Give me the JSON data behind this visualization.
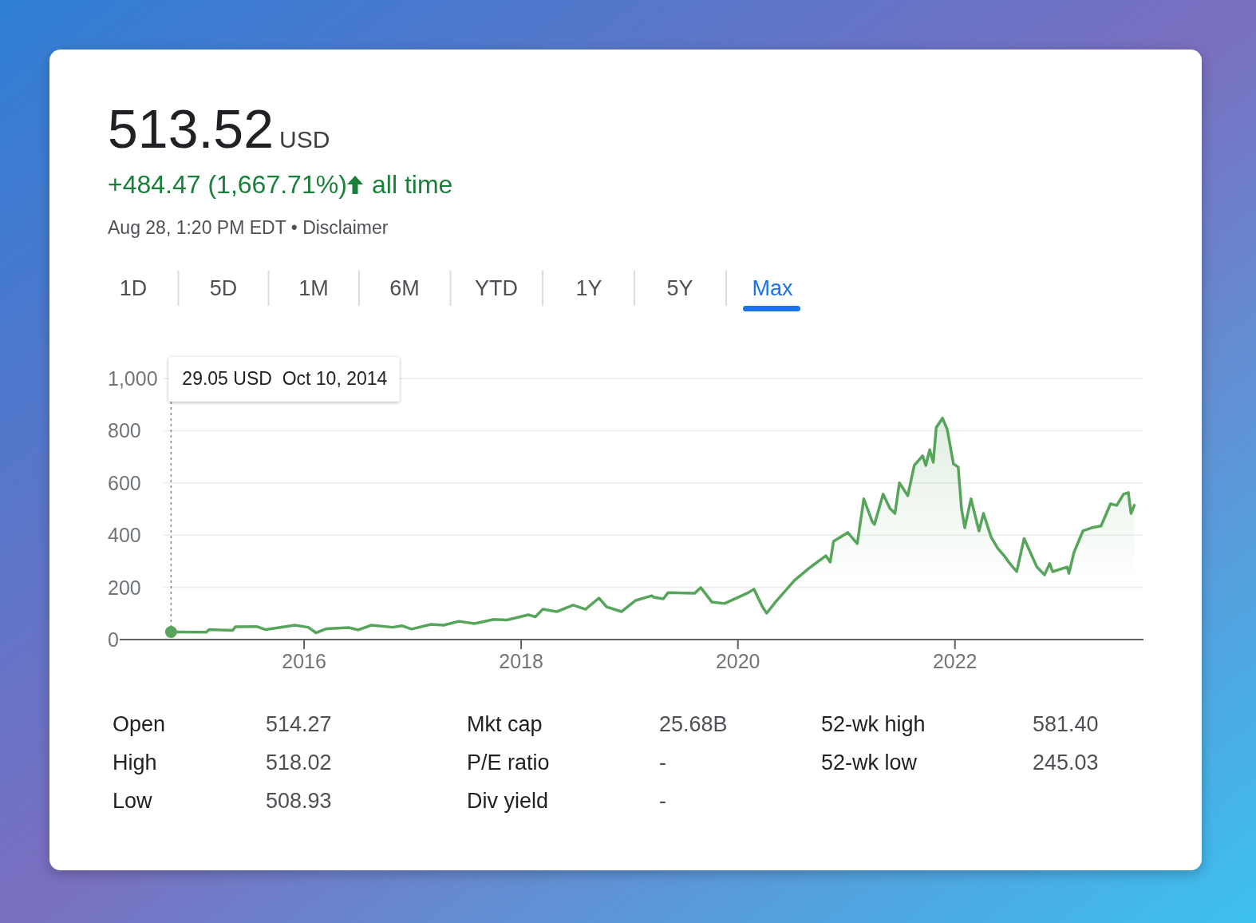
{
  "chart_data": {
    "type": "area",
    "title": "513.52",
    "annotations": [
      "USD",
      "+484.47 (1,667.71%)",
      "all time",
      "Aug 28, 1:20 PM EDT • Disclaimer",
      "1D",
      "5D",
      "1M",
      "6M",
      "YTD",
      "1Y",
      "5Y",
      "Max",
      "Open",
      "514.27",
      "Mkt cap",
      "25.68B",
      "52-wk high",
      "581.40",
      "High",
      "518.02",
      "P/E ratio",
      "-",
      "52-wk low",
      "245.03",
      "Low",
      "508.93",
      "Div yield",
      "-",
      {
        "text": "29.05 USD  Oct 10, 2014",
        "x": "2014-10-10",
        "y": 29.05
      }
    ],
    "series": [
      {
        "color": "#56a55b",
        "x": [
          "2014-10-10",
          "2015-02-05",
          "2015-02-15",
          "2015-05-05",
          "2015-05-15",
          "2015-07-25",
          "2015-08-25",
          "2015-12-01",
          "2016-01-15",
          "2016-02-10",
          "2016-03-15",
          "2016-05-30",
          "2016-07-01",
          "2016-08-15",
          "2016-10-25",
          "2016-11-25",
          "2016-12-28",
          "2017-03-03",
          "2017-04-15",
          "2017-06-05",
          "2017-07-28",
          "2017-10-01",
          "2017-11-14",
          "2018-01-25",
          "2018-02-18",
          "2018-03-15",
          "2018-05-01",
          "2018-06-25",
          "2018-08-06",
          "2018-09-20",
          "2018-10-16",
          "2018-12-05",
          "2019-01-22",
          "2019-03-17",
          "2019-03-24",
          "2019-04-25",
          "2019-05-11",
          "2019-08-08",
          "2019-08-29",
          "2019-10-05",
          "2019-11-17",
          "2020-02-06",
          "2020-02-24",
          "2020-03-24",
          "2020-04-07",
          "2020-05-07",
          "2020-07-09",
          "2020-08-26",
          "2020-10-23",
          "2020-11-07",
          "2020-11-18",
          "2021-01-05",
          "2021-02-06",
          "2021-02-28",
          "2021-03-28",
          "2021-04-05",
          "2021-05-04",
          "2021-05-27",
          "2021-06-13",
          "2021-06-28",
          "2021-07-26",
          "2021-08-17",
          "2021-09-14",
          "2021-09-25",
          "2021-10-08",
          "2021-10-20",
          "2021-10-30",
          "2021-11-20",
          "2021-12-06",
          "2021-12-27",
          "2022-01-12",
          "2022-01-23",
          "2022-02-03",
          "2022-02-24",
          "2022-03-23",
          "2022-04-07",
          "2022-05-03",
          "2022-05-25",
          "2022-06-16",
          "2022-07-01",
          "2022-07-28",
          "2022-08-22",
          "2022-10-04",
          "2022-10-30",
          "2022-11-16",
          "2022-11-26",
          "2023-01-14",
          "2023-01-20",
          "2023-02-06",
          "2023-03-08",
          "2023-04-06",
          "2023-05-08",
          "2023-06-09",
          "2023-06-30",
          "2023-07-23",
          "2023-08-08",
          "2023-08-17",
          "2023-08-28"
        ],
        "values": [
          29,
          28,
          38,
          35,
          49,
          50,
          38,
          55,
          47,
          26,
          41,
          46,
          37,
          55,
          47,
          53,
          40,
          58,
          55,
          70,
          61,
          77,
          75,
          95,
          87,
          116,
          107,
          132,
          116,
          159,
          125,
          107,
          150,
          168,
          162,
          156,
          180,
          177,
          199,
          144,
          138,
          180,
          193,
          125,
          101,
          144,
          226,
          272,
          321,
          297,
          376,
          410,
          367,
          539,
          453,
          441,
          557,
          502,
          483,
          600,
          551,
          667,
          704,
          667,
          727,
          679,
          812,
          848,
          805,
          673,
          661,
          502,
          428,
          539,
          416,
          483,
          392,
          350,
          321,
          297,
          260,
          387,
          278,
          248,
          291,
          260,
          278,
          254,
          334,
          416,
          428,
          435,
          520,
          514,
          557,
          563,
          483,
          514
        ]
      }
    ],
    "xlim": [
      "2014-04-20",
      "2023-09-28"
    ],
    "xticks": [
      {
        "value": "2016-01-01",
        "label": "2016"
      },
      {
        "value": "2018-01-01",
        "label": "2018"
      },
      {
        "value": "2020-01-01",
        "label": "2020"
      },
      {
        "value": "2022-01-01",
        "label": "2022"
      }
    ],
    "ylim": [
      0,
      1000
    ],
    "yticks": [
      0,
      200,
      400,
      600,
      800,
      {
        "value": 1000,
        "label": "1,000"
      }
    ],
    "grid": "y"
  }
}
